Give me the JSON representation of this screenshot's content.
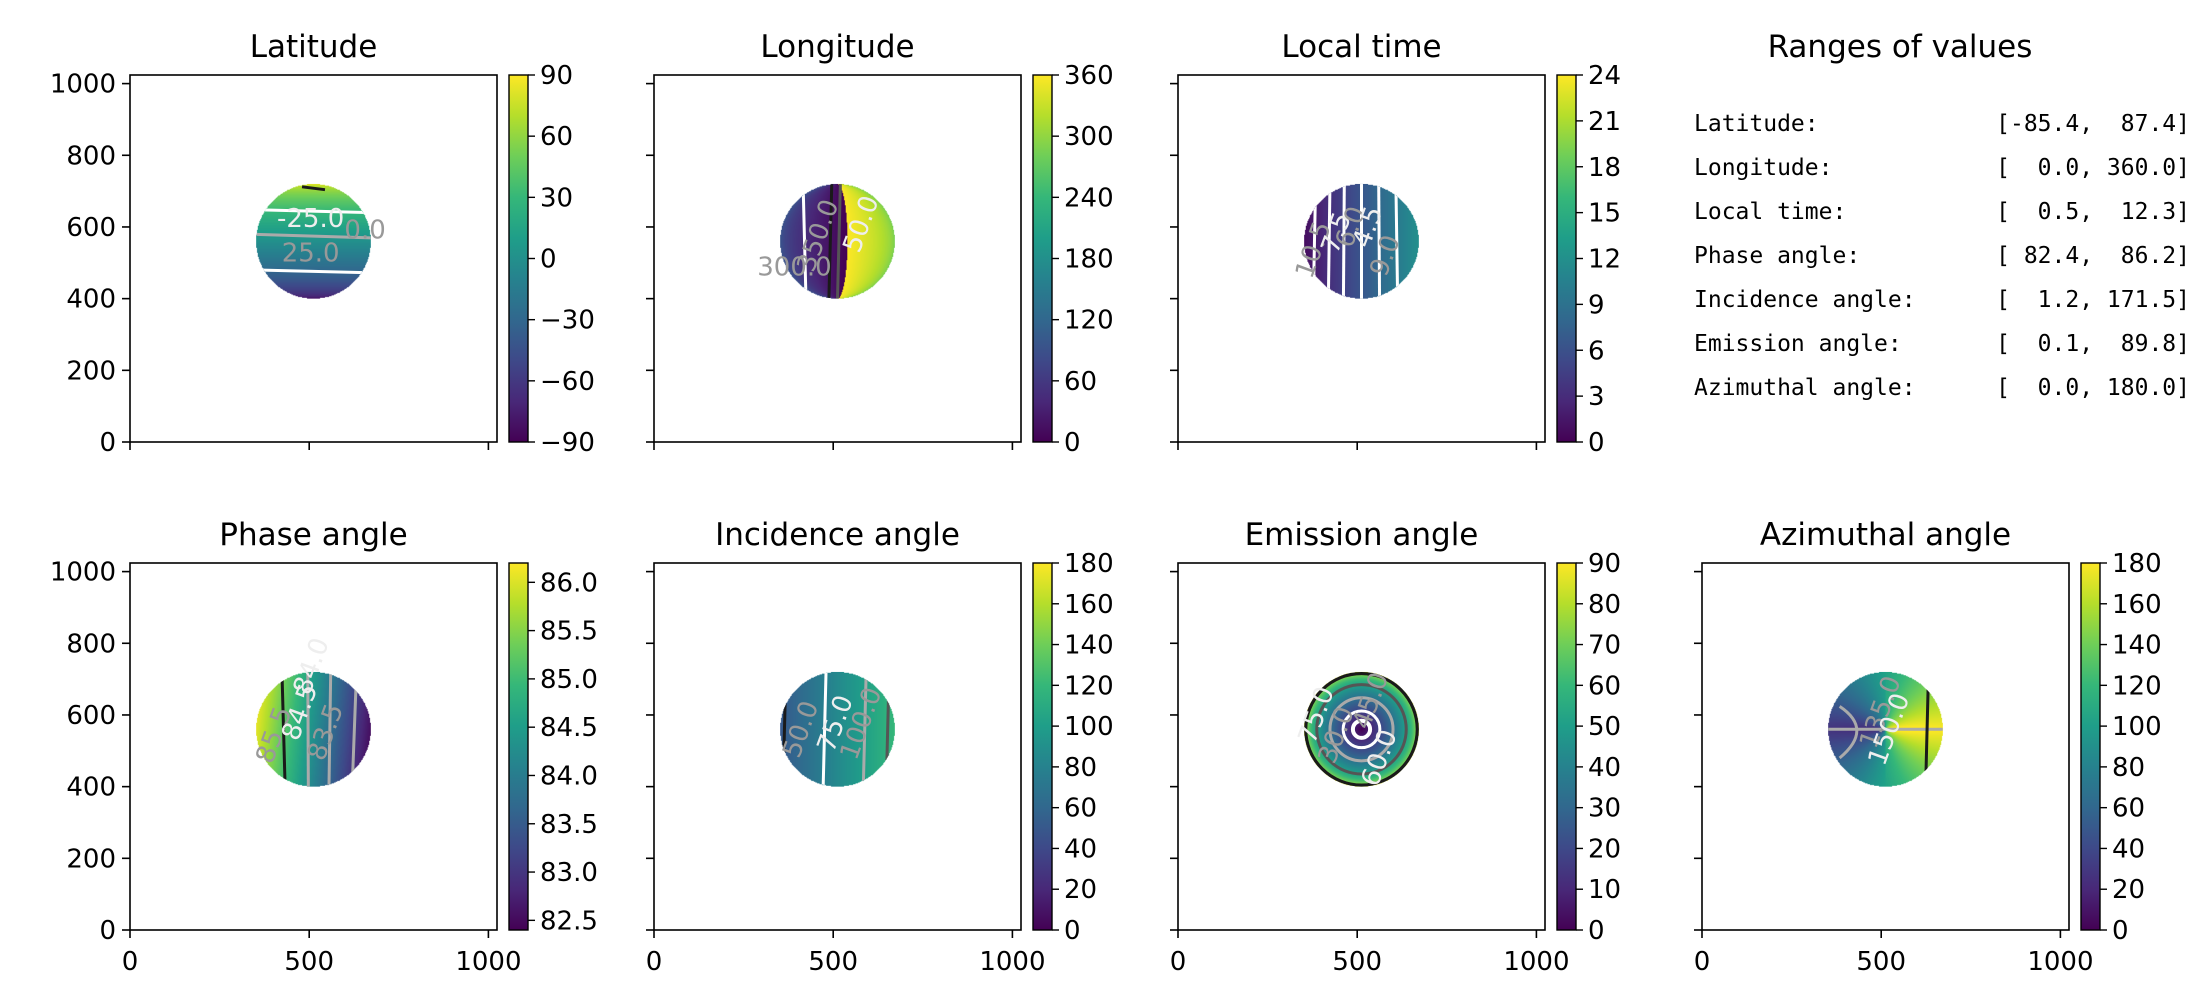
{
  "figure": {
    "colormap": "viridis",
    "colormap_stops": [
      "#440154",
      "#482878",
      "#3e4989",
      "#31688e",
      "#26828e",
      "#1f9e89",
      "#35b779",
      "#6ece58",
      "#b5de2b",
      "#fde725"
    ],
    "background": "#ffffff",
    "contour_colors": [
      "#ffffff",
      "#aaaaaa",
      "#555555",
      "#1a1a1a"
    ]
  },
  "chart_data": [
    {
      "type": "heatmap",
      "title": "Latitude",
      "xlim": [
        0,
        1024
      ],
      "ylim": [
        0,
        1024
      ],
      "xticks": [],
      "yticks": [
        0,
        200,
        400,
        600,
        800,
        1000
      ],
      "disk": {
        "center": [
          512,
          560
        ],
        "radius": 160
      },
      "value_range": [
        -90,
        90
      ],
      "colorbar_ticks": [
        90,
        60,
        30,
        0,
        -30,
        -60,
        -90
      ],
      "field": "lat",
      "contour_labels": [
        "25.0",
        "-25.0",
        "0.0"
      ]
    },
    {
      "type": "heatmap",
      "title": "Longitude",
      "xlim": [
        0,
        1024
      ],
      "ylim": [
        0,
        1024
      ],
      "xticks": [],
      "yticks": [],
      "disk": {
        "center": [
          512,
          560
        ],
        "radius": 160
      },
      "value_range": [
        0,
        360
      ],
      "colorbar_ticks": [
        360,
        300,
        240,
        180,
        120,
        60,
        0
      ],
      "field": "lon",
      "contour_labels": [
        "300.0",
        "50.0",
        "350.0"
      ]
    },
    {
      "type": "heatmap",
      "title": "Local time",
      "xlim": [
        0,
        1024
      ],
      "ylim": [
        0,
        1024
      ],
      "xticks": [],
      "yticks": [],
      "disk": {
        "center": [
          512,
          560
        ],
        "radius": 160
      },
      "value_range": [
        0,
        24
      ],
      "colorbar_ticks": [
        24,
        21,
        18,
        15,
        12,
        9,
        6,
        3,
        0
      ],
      "field": "lt",
      "contour_labels": [
        "10.5",
        "7.5",
        "6.0",
        "4.5",
        "9.0"
      ]
    },
    {
      "type": "heatmap",
      "title": "Phase angle",
      "xlim": [
        0,
        1024
      ],
      "ylim": [
        0,
        1024
      ],
      "xticks": [
        0,
        500,
        1000
      ],
      "yticks": [
        0,
        200,
        400,
        600,
        800,
        1000
      ],
      "disk": {
        "center": [
          512,
          560
        ],
        "radius": 160
      },
      "value_range": [
        82.4,
        86.2
      ],
      "colorbar_ticks": [
        86.0,
        85.5,
        85.0,
        84.5,
        84.0,
        83.5,
        83.0,
        82.5
      ],
      "field": "phase",
      "contour_labels": [
        "85.5",
        "84.5",
        "83.5",
        "84.0"
      ]
    },
    {
      "type": "heatmap",
      "title": "Incidence angle",
      "xlim": [
        0,
        1024
      ],
      "ylim": [
        0,
        1024
      ],
      "xticks": [
        0,
        500,
        1000
      ],
      "yticks": [],
      "disk": {
        "center": [
          512,
          560
        ],
        "radius": 160
      },
      "value_range": [
        0,
        180
      ],
      "colorbar_ticks": [
        180,
        160,
        140,
        120,
        100,
        80,
        60,
        40,
        20,
        0
      ],
      "field": "inc",
      "contour_labels": [
        "50.0",
        "75.0",
        "100.0"
      ]
    },
    {
      "type": "heatmap",
      "title": "Emission angle",
      "xlim": [
        0,
        1024
      ],
      "ylim": [
        0,
        1024
      ],
      "xticks": [
        0,
        500,
        1000
      ],
      "yticks": [],
      "disk": {
        "center": [
          512,
          560
        ],
        "radius": 160
      },
      "value_range": [
        0,
        90
      ],
      "colorbar_ticks": [
        90,
        80,
        70,
        60,
        50,
        40,
        30,
        20,
        10,
        0
      ],
      "field": "emi",
      "contour_labels": [
        "30.0",
        "60.0",
        "45.0",
        "75.0"
      ]
    },
    {
      "type": "heatmap",
      "title": "Azimuthal angle",
      "xlim": [
        0,
        1024
      ],
      "ylim": [
        0,
        1024
      ],
      "xticks": [
        0,
        500,
        1000
      ],
      "yticks": [],
      "disk": {
        "center": [
          512,
          560
        ],
        "radius": 160
      },
      "value_range": [
        0,
        180
      ],
      "colorbar_ticks": [
        180,
        160,
        140,
        120,
        100,
        80,
        60,
        40,
        20,
        0
      ],
      "field": "azi",
      "contour_labels": [
        "135.0",
        "150.0"
      ]
    }
  ],
  "ranges": {
    "title": "Ranges of values",
    "rows": [
      {
        "label": "Latitude:",
        "value": "[-85.4,  87.4]"
      },
      {
        "label": "Longitude:",
        "value": "[  0.0, 360.0]"
      },
      {
        "label": "Local time:",
        "value": "[  0.5,  12.3]"
      },
      {
        "label": "Phase angle:",
        "value": "[ 82.4,  86.2]"
      },
      {
        "label": "Incidence angle:",
        "value": "[  1.2, 171.5]"
      },
      {
        "label": "Emission angle:",
        "value": "[  0.1,  89.8]"
      },
      {
        "label": "Azimuthal angle:",
        "value": "[  0.0, 180.0]"
      }
    ]
  }
}
